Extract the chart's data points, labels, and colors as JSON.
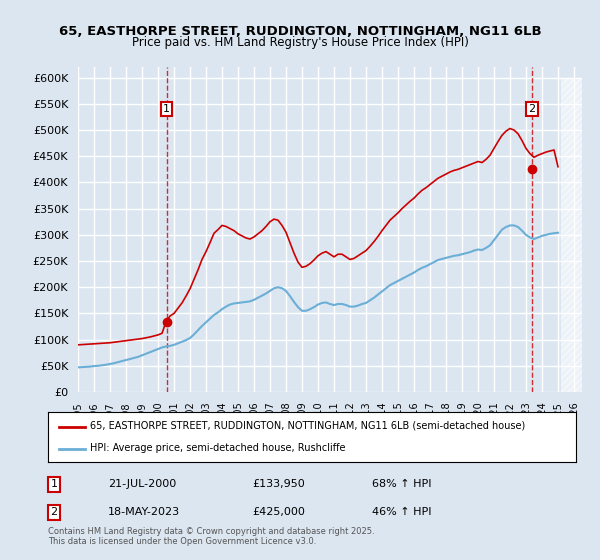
{
  "title_line1": "65, EASTHORPE STREET, RUDDINGTON, NOTTINGHAM, NG11 6LB",
  "title_line2": "Price paid vs. HM Land Registry's House Price Index (HPI)",
  "ylabel_ticks": [
    "£0",
    "£50K",
    "£100K",
    "£150K",
    "£200K",
    "£250K",
    "£300K",
    "£350K",
    "£400K",
    "£450K",
    "£500K",
    "£550K",
    "£600K"
  ],
  "ylim": [
    0,
    600000
  ],
  "xlim_start": 1995.0,
  "xlim_end": 2026.5,
  "background_color": "#dce6f1",
  "plot_bg_color": "#dce6f1",
  "grid_color": "#ffffff",
  "hpi_color": "#6baed6",
  "price_color": "#cc0000",
  "sale1_x": 2000.54,
  "sale1_y": 133950,
  "sale1_label": "1",
  "sale1_date": "21-JUL-2000",
  "sale1_price": "£133,950",
  "sale1_pct": "68% ↑ HPI",
  "sale2_x": 2023.38,
  "sale2_y": 425000,
  "sale2_label": "2",
  "sale2_date": "18-MAY-2023",
  "sale2_price": "£425,000",
  "sale2_pct": "46% ↑ HPI",
  "legend_line1": "65, EASTHORPE STREET, RUDDINGTON, NOTTINGHAM, NG11 6LB (semi-detached house)",
  "legend_line2": "HPI: Average price, semi-detached house, Rushcliffe",
  "footer": "Contains HM Land Registry data © Crown copyright and database right 2025.\nThis data is licensed under the Open Government Licence v3.0.",
  "hpi_data_x": [
    1995.0,
    1995.25,
    1995.5,
    1995.75,
    1996.0,
    1996.25,
    1996.5,
    1996.75,
    1997.0,
    1997.25,
    1997.5,
    1997.75,
    1998.0,
    1998.25,
    1998.5,
    1998.75,
    1999.0,
    1999.25,
    1999.5,
    1999.75,
    2000.0,
    2000.25,
    2000.5,
    2000.75,
    2001.0,
    2001.25,
    2001.5,
    2001.75,
    2002.0,
    2002.25,
    2002.5,
    2002.75,
    2003.0,
    2003.25,
    2003.5,
    2003.75,
    2004.0,
    2004.25,
    2004.5,
    2004.75,
    2005.0,
    2005.25,
    2005.5,
    2005.75,
    2006.0,
    2006.25,
    2006.5,
    2006.75,
    2007.0,
    2007.25,
    2007.5,
    2007.75,
    2008.0,
    2008.25,
    2008.5,
    2008.75,
    2009.0,
    2009.25,
    2009.5,
    2009.75,
    2010.0,
    2010.25,
    2010.5,
    2010.75,
    2011.0,
    2011.25,
    2011.5,
    2011.75,
    2012.0,
    2012.25,
    2012.5,
    2012.75,
    2013.0,
    2013.25,
    2013.5,
    2013.75,
    2014.0,
    2014.25,
    2014.5,
    2014.75,
    2015.0,
    2015.25,
    2015.5,
    2015.75,
    2016.0,
    2016.25,
    2016.5,
    2016.75,
    2017.0,
    2017.25,
    2017.5,
    2017.75,
    2018.0,
    2018.25,
    2018.5,
    2018.75,
    2019.0,
    2019.25,
    2019.5,
    2019.75,
    2020.0,
    2020.25,
    2020.5,
    2020.75,
    2021.0,
    2021.25,
    2021.5,
    2021.75,
    2022.0,
    2022.25,
    2022.5,
    2022.75,
    2023.0,
    2023.25,
    2023.5,
    2023.75,
    2024.0,
    2024.25,
    2024.5,
    2024.75,
    2025.0
  ],
  "hpi_data_y": [
    47000,
    47500,
    48000,
    48500,
    49500,
    50000,
    51000,
    52000,
    53500,
    55000,
    57000,
    59000,
    61000,
    63000,
    65000,
    67000,
    70000,
    73000,
    76000,
    79000,
    82000,
    85000,
    87000,
    88000,
    90000,
    93000,
    96000,
    99000,
    103000,
    110000,
    118000,
    126000,
    133000,
    140000,
    147000,
    152000,
    158000,
    163000,
    167000,
    169000,
    170000,
    171000,
    172000,
    173000,
    176000,
    180000,
    184000,
    188000,
    193000,
    198000,
    200000,
    198000,
    193000,
    183000,
    172000,
    162000,
    155000,
    155000,
    158000,
    162000,
    167000,
    170000,
    171000,
    168000,
    166000,
    168000,
    168000,
    166000,
    163000,
    163000,
    165000,
    168000,
    170000,
    175000,
    180000,
    186000,
    192000,
    198000,
    204000,
    208000,
    212000,
    216000,
    220000,
    224000,
    228000,
    233000,
    237000,
    240000,
    244000,
    248000,
    252000,
    254000,
    256000,
    258000,
    260000,
    261000,
    263000,
    265000,
    267000,
    270000,
    272000,
    271000,
    275000,
    280000,
    290000,
    300000,
    310000,
    315000,
    318000,
    318000,
    315000,
    308000,
    300000,
    295000,
    292000,
    295000,
    298000,
    300000,
    302000,
    303000,
    304000
  ],
  "red_data_x": [
    1995.0,
    1995.25,
    1995.5,
    1995.75,
    1996.0,
    1996.25,
    1996.5,
    1996.75,
    1997.0,
    1997.25,
    1997.5,
    1997.75,
    1998.0,
    1998.25,
    1998.5,
    1998.75,
    1999.0,
    1999.25,
    1999.5,
    1999.75,
    2000.0,
    2000.25,
    2000.5,
    2000.75,
    2001.0,
    2001.25,
    2001.5,
    2001.75,
    2002.0,
    2002.25,
    2002.5,
    2002.75,
    2003.0,
    2003.25,
    2003.5,
    2003.75,
    2004.0,
    2004.25,
    2004.5,
    2004.75,
    2005.0,
    2005.25,
    2005.5,
    2005.75,
    2006.0,
    2006.25,
    2006.5,
    2006.75,
    2007.0,
    2007.25,
    2007.5,
    2007.75,
    2008.0,
    2008.25,
    2008.5,
    2008.75,
    2009.0,
    2009.25,
    2009.5,
    2009.75,
    2010.0,
    2010.25,
    2010.5,
    2010.75,
    2011.0,
    2011.25,
    2011.5,
    2011.75,
    2012.0,
    2012.25,
    2012.5,
    2012.75,
    2013.0,
    2013.25,
    2013.5,
    2013.75,
    2014.0,
    2014.25,
    2014.5,
    2014.75,
    2015.0,
    2015.25,
    2015.5,
    2015.75,
    2016.0,
    2016.25,
    2016.5,
    2016.75,
    2017.0,
    2017.25,
    2017.5,
    2017.75,
    2018.0,
    2018.25,
    2018.5,
    2018.75,
    2019.0,
    2019.25,
    2019.5,
    2019.75,
    2020.0,
    2020.25,
    2020.5,
    2020.75,
    2021.0,
    2021.25,
    2021.5,
    2021.75,
    2022.0,
    2022.25,
    2022.5,
    2022.75,
    2023.0,
    2023.25,
    2023.5,
    2023.75,
    2024.0,
    2024.25,
    2024.5,
    2024.75,
    2025.0
  ],
  "red_data_y": [
    90000,
    90500,
    91000,
    91500,
    92000,
    92500,
    93000,
    93500,
    94000,
    95000,
    96000,
    97000,
    98000,
    99000,
    100000,
    101000,
    102000,
    103500,
    105000,
    107000,
    109000,
    112000,
    133950,
    145000,
    150000,
    160000,
    170000,
    183000,
    197000,
    215000,
    233000,
    253000,
    268000,
    285000,
    303000,
    310000,
    318000,
    316000,
    312000,
    308000,
    302000,
    298000,
    294000,
    292000,
    296000,
    302000,
    308000,
    316000,
    325000,
    330000,
    328000,
    318000,
    305000,
    285000,
    265000,
    248000,
    238000,
    240000,
    245000,
    252000,
    260000,
    265000,
    268000,
    263000,
    258000,
    263000,
    263000,
    258000,
    253000,
    255000,
    260000,
    265000,
    270000,
    278000,
    287000,
    297000,
    308000,
    318000,
    328000,
    335000,
    342000,
    350000,
    357000,
    364000,
    370000,
    378000,
    385000,
    390000,
    396000,
    402000,
    408000,
    412000,
    416000,
    420000,
    423000,
    425000,
    428000,
    431000,
    434000,
    437000,
    440000,
    438000,
    444000,
    452000,
    465000,
    478000,
    490000,
    498000,
    503000,
    500000,
    493000,
    480000,
    465000,
    455000,
    448000,
    452000,
    455000,
    458000,
    460000,
    462000,
    430000
  ]
}
